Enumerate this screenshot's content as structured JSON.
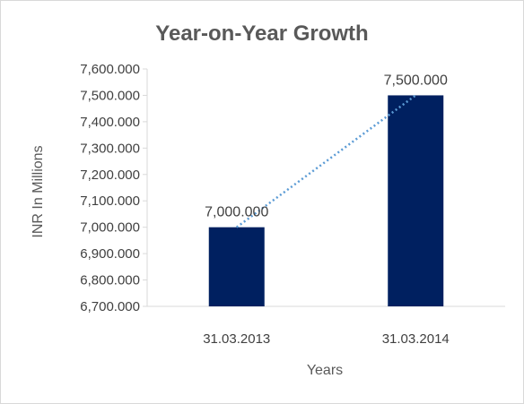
{
  "chart_data": {
    "type": "bar",
    "title": "Year-on-Year Growth",
    "xlabel": "Years",
    "ylabel": "INR In Millions",
    "categories": [
      "31.03.2013",
      "31.03.2014"
    ],
    "values": [
      7000,
      7500
    ],
    "data_labels": [
      "7,000.000",
      "7,500.000"
    ],
    "ylim": [
      6700,
      7600
    ],
    "yticks": [
      6700,
      6800,
      6900,
      7000,
      7100,
      7200,
      7300,
      7400,
      7500,
      7600
    ],
    "ytick_labels": [
      "6,700.000",
      "6,800.000",
      "6,900.000",
      "7,000.000",
      "7,100.000",
      "7,200.000",
      "7,300.000",
      "7,400.000",
      "7,500.000",
      "7,600.000"
    ],
    "trendline": "linear",
    "grid": false,
    "legend": "none",
    "bar_color": "#002060",
    "trendline_color": "#5b9bd5",
    "axis_color": "#d9d9d9"
  }
}
